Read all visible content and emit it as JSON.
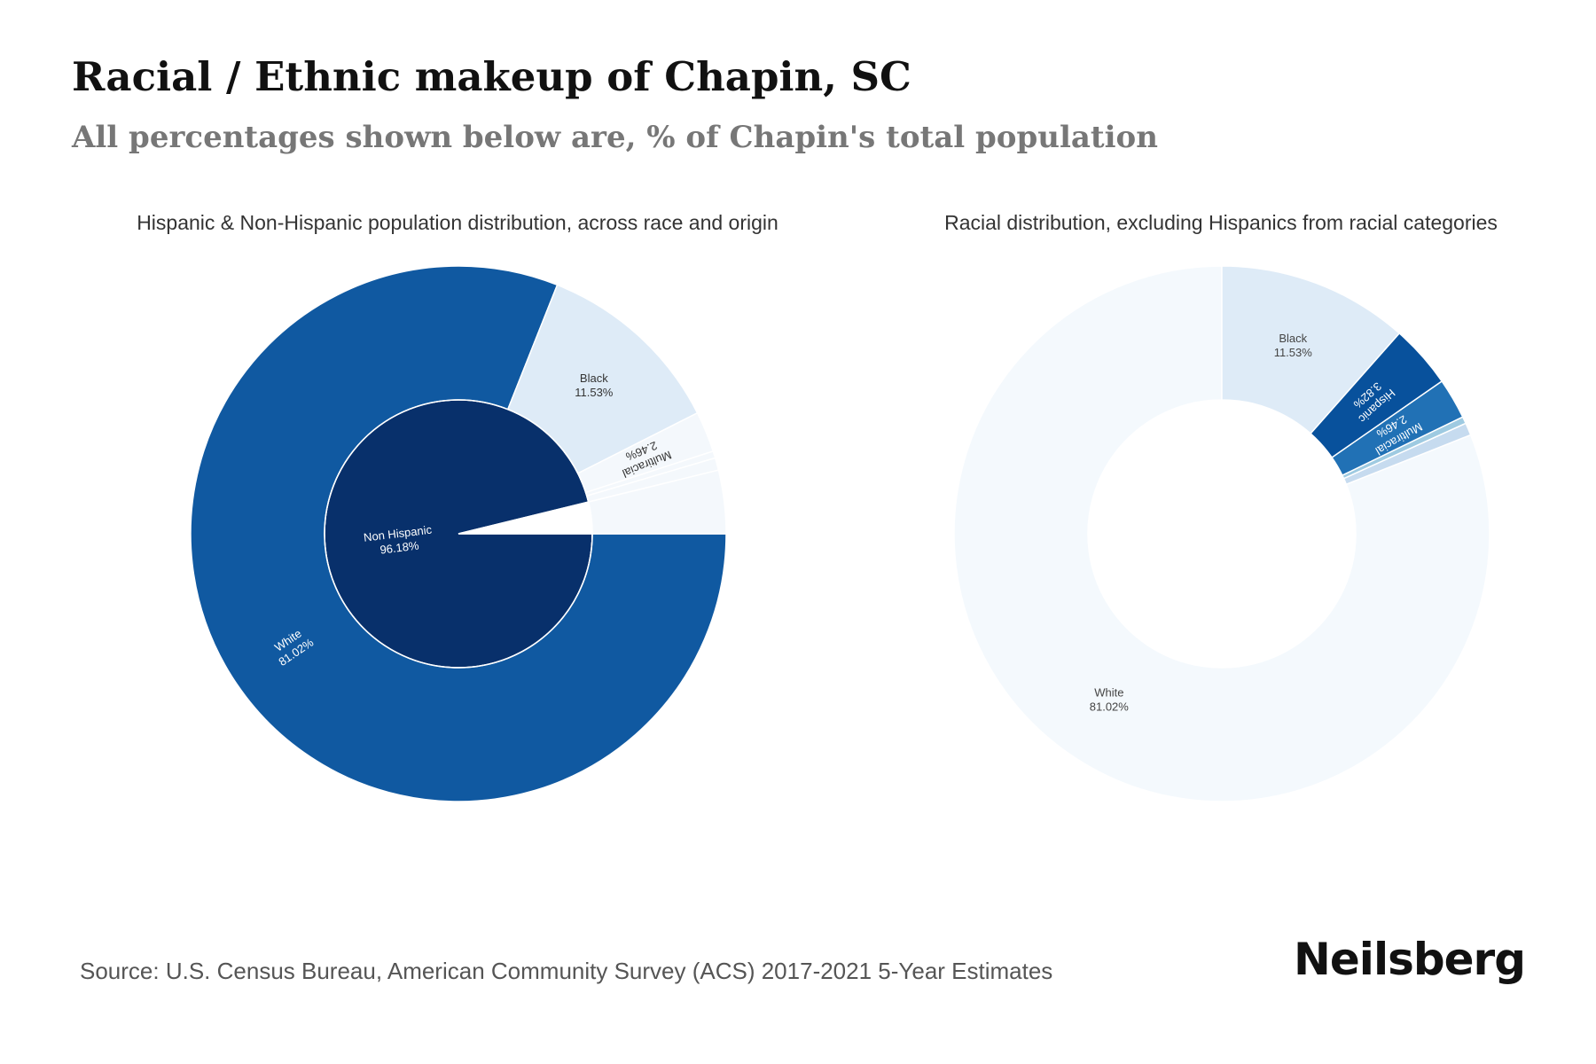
{
  "header": {
    "title": "Racial / Ethnic makeup of Chapin, SC",
    "subtitle": "All percentages shown below are, % of Chapin's total population"
  },
  "footer": {
    "source": "Source: U.S. Census Bureau, American Community Survey (ACS) 2017-2021 5-Year Estimates",
    "brand": "Neilsberg"
  },
  "colors": {
    "inner_non_hispanic": "#08306b",
    "inner_hispanic": "#ffffff",
    "white": "#1059a1",
    "black": "#deebf7",
    "other_small": "#f4f8fc",
    "hispanic": "#08519c",
    "multiracial": "#2171b5",
    "tiny_one": "#9ecae1",
    "tiny_two": "#c6dbef",
    "right_white": "#f4f9fd",
    "right_black": "#deebf7"
  },
  "chart_data": [
    {
      "type": "sunburst",
      "title": "Hispanic & Non-Hispanic population distribution, across race and origin",
      "inner": [
        {
          "name": "Non Hispanic",
          "value": 96.18,
          "label": "96.18%"
        },
        {
          "name": "",
          "value": 3.82,
          "label": ""
        }
      ],
      "outer": [
        {
          "name": "White",
          "value": 81.02,
          "label": "81.02%"
        },
        {
          "name": "Black",
          "value": 11.53,
          "label": "11.53%"
        },
        {
          "name": "Multiracial",
          "value": 2.46,
          "label": "2.46%"
        },
        {
          "name": "",
          "value": 0.42,
          "label": ""
        },
        {
          "name": "",
          "value": 0.75,
          "label": ""
        },
        {
          "name": "",
          "value": 3.82,
          "label": ""
        }
      ]
    },
    {
      "type": "donut",
      "title": "Racial distribution, excluding Hispanics from racial categories",
      "slices": [
        {
          "name": "White",
          "value": 81.02,
          "label": "81.02%"
        },
        {
          "name": "",
          "value": 0.75,
          "label": ""
        },
        {
          "name": "",
          "value": 0.42,
          "label": ""
        },
        {
          "name": "Multiracial",
          "value": 2.46,
          "label": "2.46%"
        },
        {
          "name": "Hispanic",
          "value": 3.82,
          "label": "3.82%"
        },
        {
          "name": "Black",
          "value": 11.53,
          "label": "11.53%"
        }
      ]
    }
  ]
}
